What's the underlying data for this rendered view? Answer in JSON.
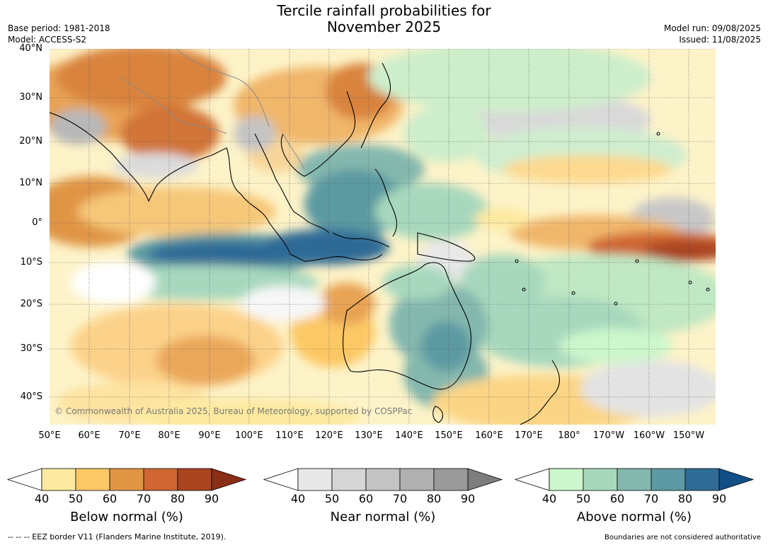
{
  "title": {
    "line1": "Tercile rainfall probabilities for",
    "line2": "November 2025"
  },
  "meta": {
    "base_period": "Base period: 1981-2018",
    "model": "Model: ACCESS-S2",
    "model_run": "Model run: 09/08/2025",
    "issued": "Issued: 11/08/2025"
  },
  "map": {
    "lat_labels": [
      "40°N",
      "30°N",
      "20°N",
      "10°N",
      "0°",
      "10°S",
      "20°S",
      "30°S",
      "40°S"
    ],
    "lon_labels": [
      "50°E",
      "60°E",
      "70°E",
      "80°E",
      "90°E",
      "100°E",
      "110°E",
      "120°E",
      "130°E",
      "140°E",
      "150°E",
      "160°E",
      "170°E",
      "180°",
      "170°W",
      "160°W",
      "150°W"
    ],
    "copyright": "© Commonwealth of Australia 2025, Bureau of Meteorology, supported by COSPPac"
  },
  "colorbars": [
    {
      "label": "Below normal (%)",
      "ticks": [
        "40",
        "50",
        "60",
        "70",
        "80",
        "90"
      ],
      "colors": [
        "#ffffff",
        "#fdeaa0",
        "#fcc865",
        "#e09545",
        "#cf6633",
        "#a94420",
        "#8b2e16"
      ]
    },
    {
      "label": "Near normal (%)",
      "ticks": [
        "40",
        "50",
        "60",
        "70",
        "80",
        "90"
      ],
      "colors": [
        "#ffffff",
        "#e8e8e8",
        "#d6d6d6",
        "#c4c4c4",
        "#b0b0b0",
        "#9a9a9a",
        "#7d7d7d"
      ]
    },
    {
      "label": "Above normal (%)",
      "ticks": [
        "40",
        "50",
        "60",
        "70",
        "80",
        "90"
      ],
      "colors": [
        "#ffffff",
        "#ccf7cc",
        "#a7d8bd",
        "#84b8ae",
        "#5b9aa2",
        "#2f6b96",
        "#124f86"
      ]
    }
  ],
  "footer": {
    "eez": "--  --  -- EEZ border V11 (Flanders Marine Institute, 2019).",
    "boundaries": "Boundaries are not considered authoritative"
  }
}
